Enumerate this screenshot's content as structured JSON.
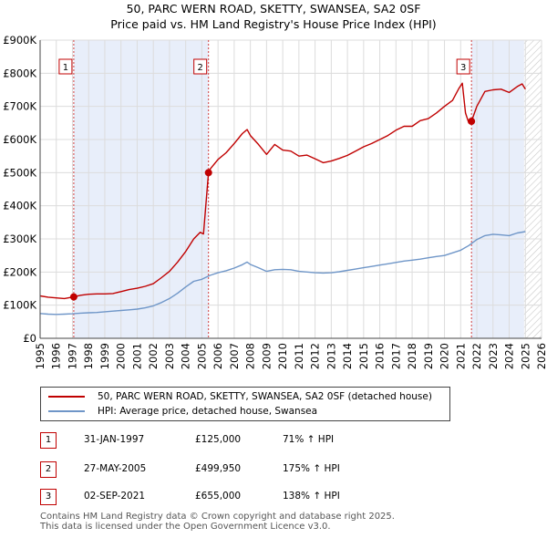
{
  "title_line1": "50, PARC WERN ROAD, SKETTY, SWANSEA, SA2 0SF",
  "title_line2": "Price paid vs. HM Land Registry's House Price Index (HPI)",
  "chart_data": {
    "type": "line",
    "title": "50, PARC WERN ROAD, SKETTY, SWANSEA, SA2 0SF — Price paid vs. HM Land Registry's House Price Index (HPI)",
    "xlim": [
      1995,
      2026
    ],
    "ylim": [
      0,
      900000
    ],
    "x_ticks": [
      1995,
      1996,
      1997,
      1998,
      1999,
      2000,
      2001,
      2002,
      2003,
      2004,
      2005,
      2006,
      2007,
      2008,
      2009,
      2010,
      2011,
      2012,
      2013,
      2014,
      2015,
      2016,
      2017,
      2018,
      2019,
      2020,
      2021,
      2022,
      2023,
      2024,
      2025,
      2026
    ],
    "y_ticks": [
      0,
      100000,
      200000,
      300000,
      400000,
      500000,
      600000,
      700000,
      800000,
      900000
    ],
    "y_tick_labels": [
      "£0",
      "£100K",
      "£200K",
      "£300K",
      "£400K",
      "£500K",
      "£600K",
      "£700K",
      "£800K",
      "£900K"
    ],
    "series": [
      {
        "name": "50, PARC WERN ROAD, SKETTY, SWANSEA, SA2 0SF (detached house)",
        "color": "#c00000",
        "points": [
          [
            1995.0,
            128000
          ],
          [
            1995.5,
            124000
          ],
          [
            1996.0,
            122000
          ],
          [
            1996.5,
            120000
          ],
          [
            1997.08,
            125000
          ],
          [
            1997.5,
            130000
          ],
          [
            1998.0,
            133000
          ],
          [
            1998.5,
            134000
          ],
          [
            1999.0,
            134000
          ],
          [
            1999.5,
            135000
          ],
          [
            2000.0,
            141000
          ],
          [
            2000.5,
            147000
          ],
          [
            2001.0,
            151000
          ],
          [
            2001.5,
            157000
          ],
          [
            2002.0,
            165000
          ],
          [
            2002.5,
            183000
          ],
          [
            2003.0,
            202000
          ],
          [
            2003.5,
            230000
          ],
          [
            2004.0,
            262000
          ],
          [
            2004.5,
            300000
          ],
          [
            2004.9,
            320000
          ],
          [
            2005.1,
            315000
          ],
          [
            2005.41,
            499950
          ],
          [
            2005.5,
            510000
          ],
          [
            2006.0,
            540000
          ],
          [
            2006.5,
            560000
          ],
          [
            2007.0,
            588000
          ],
          [
            2007.5,
            618000
          ],
          [
            2007.8,
            630000
          ],
          [
            2008.0,
            612000
          ],
          [
            2008.5,
            585000
          ],
          [
            2009.0,
            555000
          ],
          [
            2009.5,
            585000
          ],
          [
            2010.0,
            568000
          ],
          [
            2010.5,
            565000
          ],
          [
            2011.0,
            550000
          ],
          [
            2011.5,
            553000
          ],
          [
            2012.0,
            542000
          ],
          [
            2012.5,
            530000
          ],
          [
            2013.0,
            535000
          ],
          [
            2013.5,
            543000
          ],
          [
            2014.0,
            552000
          ],
          [
            2014.5,
            565000
          ],
          [
            2015.0,
            578000
          ],
          [
            2015.5,
            588000
          ],
          [
            2016.0,
            600000
          ],
          [
            2016.5,
            612000
          ],
          [
            2017.0,
            628000
          ],
          [
            2017.5,
            640000
          ],
          [
            2018.0,
            640000
          ],
          [
            2018.5,
            657000
          ],
          [
            2019.0,
            663000
          ],
          [
            2019.5,
            680000
          ],
          [
            2020.0,
            700000
          ],
          [
            2020.5,
            718000
          ],
          [
            2020.9,
            755000
          ],
          [
            2021.1,
            770000
          ],
          [
            2021.3,
            680000
          ],
          [
            2021.5,
            650000
          ],
          [
            2021.67,
            655000
          ],
          [
            2022.0,
            700000
          ],
          [
            2022.5,
            745000
          ],
          [
            2023.0,
            750000
          ],
          [
            2023.5,
            752000
          ],
          [
            2024.0,
            742000
          ],
          [
            2024.5,
            760000
          ],
          [
            2024.8,
            768000
          ],
          [
            2025.0,
            752000
          ]
        ]
      },
      {
        "name": "HPI: Average price, detached house, Swansea",
        "color": "#6f96c8",
        "points": [
          [
            1995.0,
            75000
          ],
          [
            1995.5,
            73000
          ],
          [
            1996.0,
            72000
          ],
          [
            1996.5,
            73000
          ],
          [
            1997.0,
            74000
          ],
          [
            1997.5,
            76000
          ],
          [
            1998.0,
            77000
          ],
          [
            1998.5,
            78000
          ],
          [
            1999.0,
            80000
          ],
          [
            1999.5,
            82000
          ],
          [
            2000.0,
            84000
          ],
          [
            2000.5,
            86000
          ],
          [
            2001.0,
            88000
          ],
          [
            2001.5,
            92000
          ],
          [
            2002.0,
            98000
          ],
          [
            2002.5,
            108000
          ],
          [
            2003.0,
            120000
          ],
          [
            2003.5,
            136000
          ],
          [
            2004.0,
            155000
          ],
          [
            2004.5,
            172000
          ],
          [
            2005.0,
            178000
          ],
          [
            2005.5,
            190000
          ],
          [
            2006.0,
            198000
          ],
          [
            2006.5,
            204000
          ],
          [
            2007.0,
            212000
          ],
          [
            2007.5,
            222000
          ],
          [
            2007.8,
            230000
          ],
          [
            2008.0,
            223000
          ],
          [
            2008.5,
            213000
          ],
          [
            2009.0,
            202000
          ],
          [
            2009.5,
            207000
          ],
          [
            2010.0,
            208000
          ],
          [
            2010.5,
            207000
          ],
          [
            2011.0,
            202000
          ],
          [
            2011.5,
            200000
          ],
          [
            2012.0,
            198000
          ],
          [
            2012.5,
            197000
          ],
          [
            2013.0,
            198000
          ],
          [
            2013.5,
            201000
          ],
          [
            2014.0,
            205000
          ],
          [
            2014.5,
            209000
          ],
          [
            2015.0,
            213000
          ],
          [
            2015.5,
            217000
          ],
          [
            2016.0,
            221000
          ],
          [
            2016.5,
            225000
          ],
          [
            2017.0,
            229000
          ],
          [
            2017.5,
            233000
          ],
          [
            2018.0,
            236000
          ],
          [
            2018.5,
            239000
          ],
          [
            2019.0,
            243000
          ],
          [
            2019.5,
            247000
          ],
          [
            2020.0,
            250000
          ],
          [
            2020.5,
            258000
          ],
          [
            2021.0,
            266000
          ],
          [
            2021.5,
            280000
          ],
          [
            2022.0,
            298000
          ],
          [
            2022.5,
            310000
          ],
          [
            2023.0,
            314000
          ],
          [
            2023.5,
            312000
          ],
          [
            2024.0,
            310000
          ],
          [
            2024.5,
            318000
          ],
          [
            2025.0,
            322000
          ]
        ]
      }
    ],
    "sales": [
      {
        "label": "1",
        "x": 1997.08,
        "price": 125000
      },
      {
        "label": "2",
        "x": 2005.41,
        "price": 499950
      },
      {
        "label": "3",
        "x": 2021.67,
        "price": 655000
      }
    ],
    "shaded_spans": [
      [
        1997.08,
        2005.41
      ],
      [
        2021.67,
        2024.92
      ]
    ],
    "hatched_from": 2024.92,
    "grid": true,
    "legend_placement": "below"
  },
  "legend": {
    "items": [
      {
        "label": "50, PARC WERN ROAD, SKETTY, SWANSEA, SA2 0SF (detached house)",
        "color": "#c00000"
      },
      {
        "label": "HPI: Average price, detached house, Swansea",
        "color": "#6f96c8"
      }
    ]
  },
  "sales_table": [
    {
      "num": "1",
      "date": "31-JAN-1997",
      "price": "£125,000",
      "pct": "71% ↑ HPI"
    },
    {
      "num": "2",
      "date": "27-MAY-2005",
      "price": "£499,950",
      "pct": "175% ↑ HPI"
    },
    {
      "num": "3",
      "date": "02-SEP-2021",
      "price": "£655,000",
      "pct": "138% ↑ HPI"
    }
  ],
  "footer": {
    "line1": "Contains HM Land Registry data © Crown copyright and database right 2025.",
    "line2": "This data is licensed under the Open Government Licence v3.0."
  }
}
